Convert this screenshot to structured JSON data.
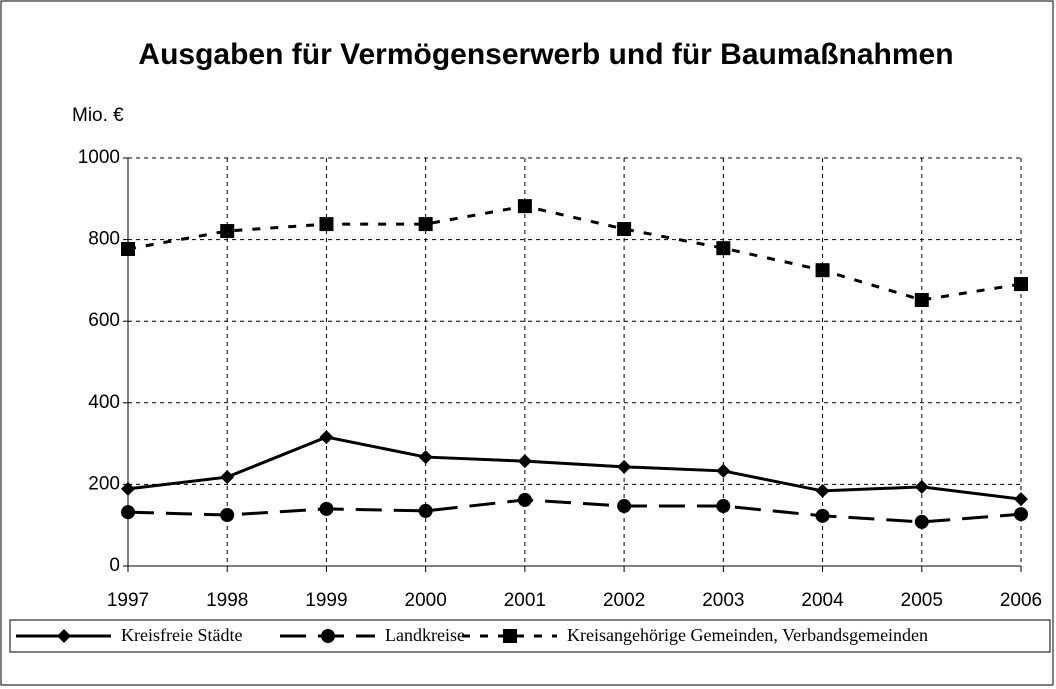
{
  "chart_data": {
    "type": "line",
    "title": "Ausgaben für Vermögenserwerb und für Baumaßnahmen",
    "y_label": "Mio. €",
    "x": [
      1997,
      1998,
      1999,
      2000,
      2001,
      2002,
      2003,
      2004,
      2005,
      2006
    ],
    "xlim": [
      1997,
      2006
    ],
    "ylim": [
      0,
      1000
    ],
    "yticks": [
      0,
      200,
      400,
      600,
      800,
      1000
    ],
    "grid": true,
    "legend": "bottom",
    "series": [
      {
        "name": "Kreisfreie Städte",
        "color": "#000000",
        "marker": "diamond",
        "dash": "solid",
        "values": [
          189,
          218,
          316,
          267,
          257,
          243,
          233,
          184,
          194,
          164
        ]
      },
      {
        "name": "Landkreise",
        "color": "#000000",
        "marker": "circle",
        "dash": "long",
        "values": [
          132,
          125,
          140,
          135,
          162,
          147,
          147,
          123,
          108,
          127
        ]
      },
      {
        "name": "Kreisangehörige Gemeinden, Verbandsgemeinden",
        "color": "#000000",
        "marker": "square",
        "dash": "short",
        "values": [
          777,
          821,
          838,
          838,
          882,
          826,
          779,
          725,
          652,
          691
        ]
      }
    ]
  }
}
